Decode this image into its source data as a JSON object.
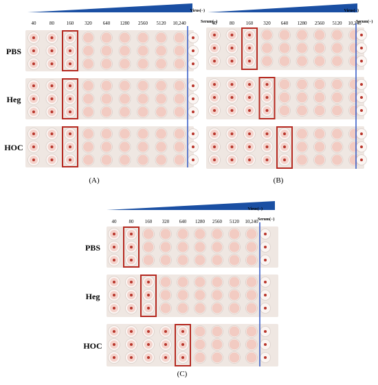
{
  "dilutions": [
    "40",
    "80",
    "160",
    "320",
    "640",
    "1280",
    "2560",
    "5120",
    "10,240"
  ],
  "virus_label": "Virus(−)",
  "serum_label": "Serum(−)",
  "panels": [
    {
      "label": "(A)",
      "groups": [
        {
          "name": "PBS",
          "endpoint": "160"
        },
        {
          "name": "Heg",
          "endpoint": "160"
        },
        {
          "name": "HOC",
          "endpoint": "160"
        }
      ]
    },
    {
      "label": "(B)",
      "groups": [
        {
          "name": "PBS",
          "endpoint": "160"
        },
        {
          "name": "Heg",
          "endpoint": "320"
        },
        {
          "name": "HOC",
          "endpoint": "640"
        }
      ]
    },
    {
      "label": "(C)",
      "groups": [
        {
          "name": "PBS",
          "endpoint": "80"
        },
        {
          "name": "Heg",
          "endpoint": "160"
        },
        {
          "name": "HOC",
          "endpoint": "640"
        }
      ]
    }
  ],
  "colors": {
    "triangle": "#1a4fa3",
    "highlight_box": "#b5281f",
    "control_line": "#3a5fc8",
    "well_pink": "#f1c6bd",
    "well_button": "#b8342a",
    "plate_bg": "#efe7e2"
  }
}
